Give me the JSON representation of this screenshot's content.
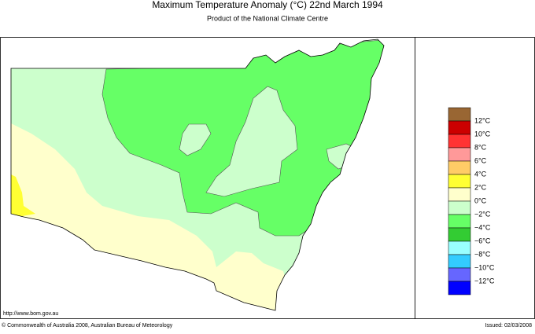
{
  "header": {
    "title": "Maximum Temperature Anomaly (°C)  22nd March 1994",
    "subtitle": "Product of the National Climate Centre"
  },
  "legend": {
    "colors": [
      "#996633",
      "#cc0000",
      "#ff3333",
      "#ff9999",
      "#ffcc66",
      "#ffff33",
      "#ffffcc",
      "#ccffcc",
      "#66ff66",
      "#33cc33",
      "#99ffff",
      "#33ccff",
      "#6666ff",
      "#0000ff"
    ],
    "labels": [
      "12°C",
      "10°C",
      "8°C",
      "6°C",
      "4°C",
      "2°C",
      "0°C",
      "−2°C",
      "−4°C",
      "−6°C",
      "−8°C",
      "−10°C",
      "−12°C"
    ]
  },
  "footer": {
    "url": "http://www.bom.gov.au",
    "copyright": "© Commonwealth of Australia 2008, Australian Bureau of Meteorology",
    "issued": "Issued: 02/03/2008"
  }
}
